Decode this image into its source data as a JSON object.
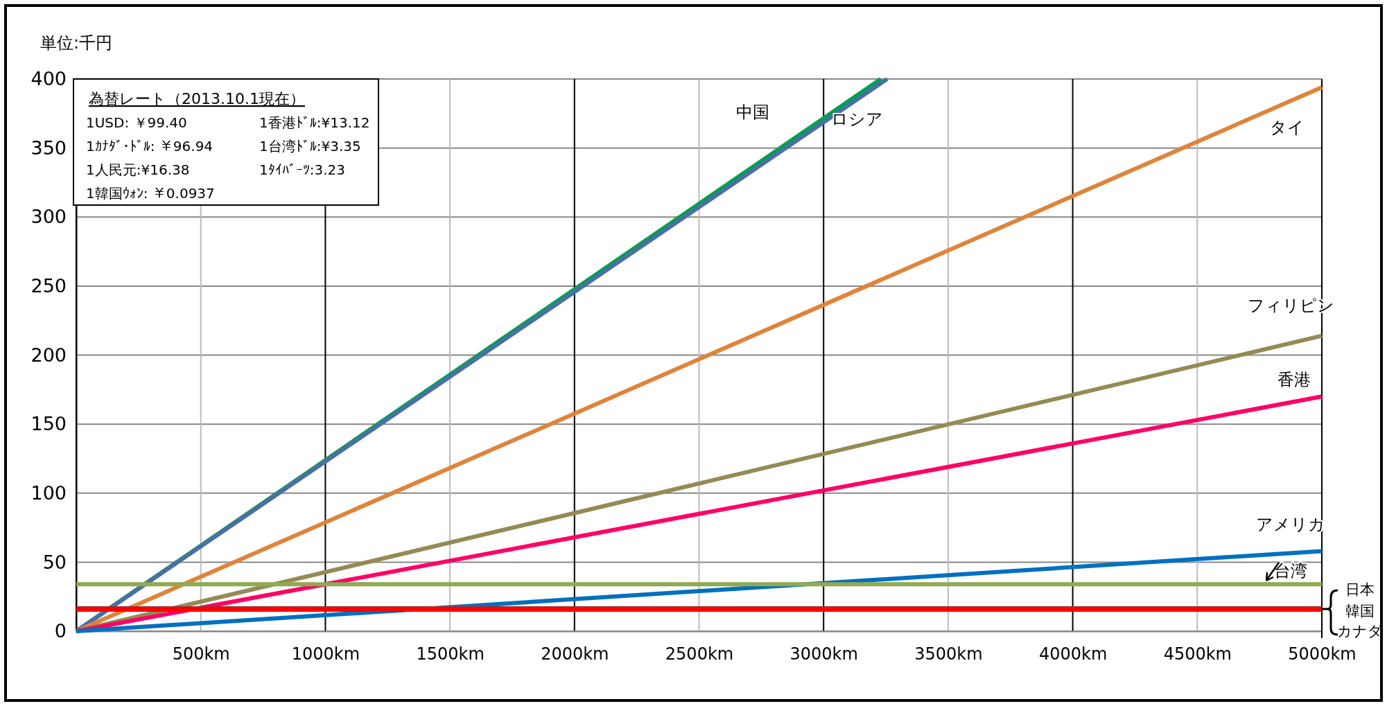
{
  "chart_data": {
    "type": "line",
    "ylabel": "単位:千円",
    "annotations": [
      "為替レート（2013.10.1現在）",
      "1USD: ￥99.40",
      "1香港ﾄﾞﾙ:¥13.12",
      "1ｶﾅﾀﾞ･ﾄﾞﾙ: ￥96.94",
      "1台湾ﾄﾞﾙ:¥3.35",
      "1人民元:¥16.38",
      "1ﾀｲﾊﾞｰﾂ:3.23",
      "1韓国ｳｫﾝ: ￥0.0937"
    ],
    "series": [
      {
        "name": "中国",
        "color": "#00a050",
        "x": [
          0,
          3230
        ],
        "values": [
          0,
          400
        ]
      },
      {
        "name": "ロシア",
        "color": "#4a6fa5",
        "x": [
          0,
          3255
        ],
        "values": [
          0,
          400
        ]
      },
      {
        "name": "タイ",
        "color": "#e0843a",
        "x": [
          0,
          5000
        ],
        "values": [
          0,
          394
        ]
      },
      {
        "name": "フィリピン",
        "color": "#948a54",
        "x": [
          0,
          5000
        ],
        "values": [
          0,
          214
        ]
      },
      {
        "name": "香港",
        "color": "#ff0066",
        "x": [
          0,
          5000
        ],
        "values": [
          0,
          170
        ]
      },
      {
        "name": "アメリカ",
        "color": "#0070c0",
        "x": [
          0,
          5000
        ],
        "values": [
          0,
          58
        ]
      },
      {
        "name": "台湾",
        "color": "#8faa50",
        "x": [
          0,
          5000
        ],
        "values": [
          34,
          34
        ]
      },
      {
        "name": "日本",
        "color": "#953735",
        "x": [
          0,
          5000
        ],
        "values": [
          16.5,
          16.5
        ]
      },
      {
        "name": "韓国",
        "color": "#ff0000",
        "x": [
          0,
          5000
        ],
        "values": [
          16,
          16
        ]
      },
      {
        "name": "カナダ",
        "color": "#ff0000",
        "x": [
          0,
          5000
        ],
        "values": [
          15.5,
          15.5
        ]
      }
    ],
    "xlim": [
      0,
      5000
    ],
    "xticks": [
      {
        "value": 0,
        "label": null
      },
      {
        "value": 500,
        "label": "500km"
      },
      {
        "value": 1000,
        "label": "1000km"
      },
      {
        "value": 1500,
        "label": "1500km"
      },
      {
        "value": 2000,
        "label": "2000km"
      },
      {
        "value": 2500,
        "label": "2500km"
      },
      {
        "value": 3000,
        "label": "3000km"
      },
      {
        "value": 3500,
        "label": "3500km"
      },
      {
        "value": 4000,
        "label": "4000km"
      },
      {
        "value": 4500,
        "label": "4500km"
      },
      {
        "value": 5000,
        "label": "5000km"
      }
    ],
    "ylim": [
      0,
      400
    ],
    "yticks": [
      0,
      50,
      100,
      150,
      200,
      250,
      300,
      350,
      400
    ],
    "grid": true,
    "marker": "none",
    "line_style": "solid"
  }
}
